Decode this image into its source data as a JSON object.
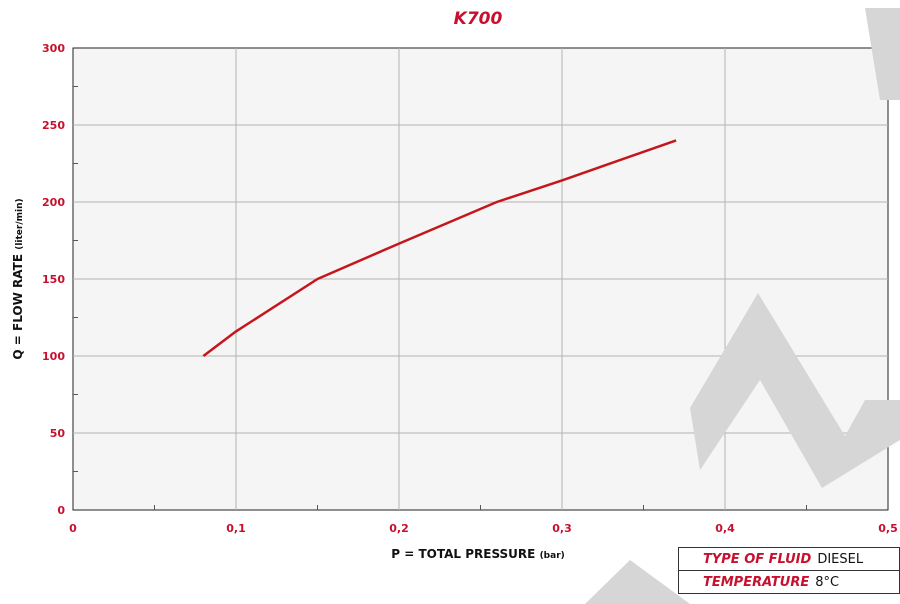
{
  "chart_data": {
    "type": "line",
    "title": "K700",
    "xlabel": "P = TOTAL PRESSURE",
    "xlabel_unit": "(bar)",
    "ylabel": "Q = FLOW RATE",
    "ylabel_unit": "(liter/min)",
    "xlim": [
      0,
      0.5
    ],
    "ylim": [
      0,
      300
    ],
    "x_ticks": [
      "0",
      "0,1",
      "0,2",
      "0,3",
      "0,4",
      "0,5"
    ],
    "y_ticks": [
      "0",
      "50",
      "100",
      "150",
      "200",
      "250",
      "300"
    ],
    "grid": true,
    "series": [
      {
        "x": [
          0.08,
          0.1,
          0.15,
          0.2,
          0.26,
          0.3,
          0.37
        ],
        "y": [
          100,
          116,
          150,
          173,
          200,
          214,
          240
        ]
      }
    ]
  },
  "info": {
    "fluid_key": "TYPE OF FLUID",
    "fluid_value": "DIESEL",
    "temp_key": "TEMPERATURE",
    "temp_value": "8°C"
  },
  "colors": {
    "accent": "#c8102e",
    "line": "#c4161c",
    "grid": "#b3b3b3",
    "plot_bg": "#f5f5f5",
    "watermark": "#d6d6d6"
  }
}
